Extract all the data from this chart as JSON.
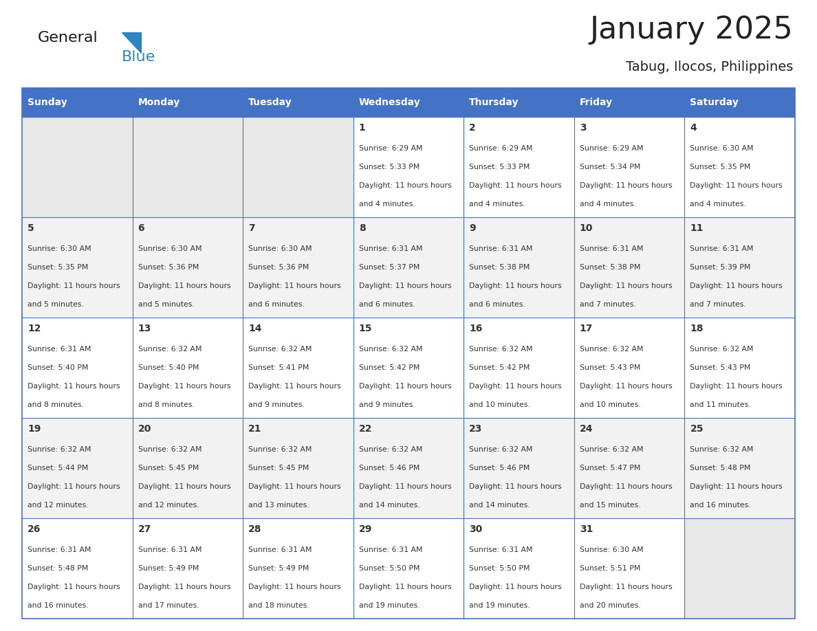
{
  "title": "January 2025",
  "subtitle": "Tabug, Ilocos, Philippines",
  "days_of_week": [
    "Sunday",
    "Monday",
    "Tuesday",
    "Wednesday",
    "Thursday",
    "Friday",
    "Saturday"
  ],
  "header_bg": "#4472C4",
  "header_text": "#FFFFFF",
  "cell_bg_light": "#FFFFFF",
  "cell_bg_dark": "#F2F2F2",
  "empty_cell_bg": "#E8E8E8",
  "border_color": "#4472C4",
  "text_color": "#333333",
  "title_color": "#222222",
  "calendar_data": [
    [
      {
        "day": "",
        "sunrise": "",
        "sunset": "",
        "daylight": ""
      },
      {
        "day": "",
        "sunrise": "",
        "sunset": "",
        "daylight": ""
      },
      {
        "day": "",
        "sunrise": "",
        "sunset": "",
        "daylight": ""
      },
      {
        "day": "1",
        "sunrise": "6:29 AM",
        "sunset": "5:33 PM",
        "daylight": "11 hours and 4 minutes."
      },
      {
        "day": "2",
        "sunrise": "6:29 AM",
        "sunset": "5:33 PM",
        "daylight": "11 hours and 4 minutes."
      },
      {
        "day": "3",
        "sunrise": "6:29 AM",
        "sunset": "5:34 PM",
        "daylight": "11 hours and 4 minutes."
      },
      {
        "day": "4",
        "sunrise": "6:30 AM",
        "sunset": "5:35 PM",
        "daylight": "11 hours and 4 minutes."
      }
    ],
    [
      {
        "day": "5",
        "sunrise": "6:30 AM",
        "sunset": "5:35 PM",
        "daylight": "11 hours and 5 minutes."
      },
      {
        "day": "6",
        "sunrise": "6:30 AM",
        "sunset": "5:36 PM",
        "daylight": "11 hours and 5 minutes."
      },
      {
        "day": "7",
        "sunrise": "6:30 AM",
        "sunset": "5:36 PM",
        "daylight": "11 hours and 6 minutes."
      },
      {
        "day": "8",
        "sunrise": "6:31 AM",
        "sunset": "5:37 PM",
        "daylight": "11 hours and 6 minutes."
      },
      {
        "day": "9",
        "sunrise": "6:31 AM",
        "sunset": "5:38 PM",
        "daylight": "11 hours and 6 minutes."
      },
      {
        "day": "10",
        "sunrise": "6:31 AM",
        "sunset": "5:38 PM",
        "daylight": "11 hours and 7 minutes."
      },
      {
        "day": "11",
        "sunrise": "6:31 AM",
        "sunset": "5:39 PM",
        "daylight": "11 hours and 7 minutes."
      }
    ],
    [
      {
        "day": "12",
        "sunrise": "6:31 AM",
        "sunset": "5:40 PM",
        "daylight": "11 hours and 8 minutes."
      },
      {
        "day": "13",
        "sunrise": "6:32 AM",
        "sunset": "5:40 PM",
        "daylight": "11 hours and 8 minutes."
      },
      {
        "day": "14",
        "sunrise": "6:32 AM",
        "sunset": "5:41 PM",
        "daylight": "11 hours and 9 minutes."
      },
      {
        "day": "15",
        "sunrise": "6:32 AM",
        "sunset": "5:42 PM",
        "daylight": "11 hours and 9 minutes."
      },
      {
        "day": "16",
        "sunrise": "6:32 AM",
        "sunset": "5:42 PM",
        "daylight": "11 hours and 10 minutes."
      },
      {
        "day": "17",
        "sunrise": "6:32 AM",
        "sunset": "5:43 PM",
        "daylight": "11 hours and 10 minutes."
      },
      {
        "day": "18",
        "sunrise": "6:32 AM",
        "sunset": "5:43 PM",
        "daylight": "11 hours and 11 minutes."
      }
    ],
    [
      {
        "day": "19",
        "sunrise": "6:32 AM",
        "sunset": "5:44 PM",
        "daylight": "11 hours and 12 minutes."
      },
      {
        "day": "20",
        "sunrise": "6:32 AM",
        "sunset": "5:45 PM",
        "daylight": "11 hours and 12 minutes."
      },
      {
        "day": "21",
        "sunrise": "6:32 AM",
        "sunset": "5:45 PM",
        "daylight": "11 hours and 13 minutes."
      },
      {
        "day": "22",
        "sunrise": "6:32 AM",
        "sunset": "5:46 PM",
        "daylight": "11 hours and 14 minutes."
      },
      {
        "day": "23",
        "sunrise": "6:32 AM",
        "sunset": "5:46 PM",
        "daylight": "11 hours and 14 minutes."
      },
      {
        "day": "24",
        "sunrise": "6:32 AM",
        "sunset": "5:47 PM",
        "daylight": "11 hours and 15 minutes."
      },
      {
        "day": "25",
        "sunrise": "6:32 AM",
        "sunset": "5:48 PM",
        "daylight": "11 hours and 16 minutes."
      }
    ],
    [
      {
        "day": "26",
        "sunrise": "6:31 AM",
        "sunset": "5:48 PM",
        "daylight": "11 hours and 16 minutes."
      },
      {
        "day": "27",
        "sunrise": "6:31 AM",
        "sunset": "5:49 PM",
        "daylight": "11 hours and 17 minutes."
      },
      {
        "day": "28",
        "sunrise": "6:31 AM",
        "sunset": "5:49 PM",
        "daylight": "11 hours and 18 minutes."
      },
      {
        "day": "29",
        "sunrise": "6:31 AM",
        "sunset": "5:50 PM",
        "daylight": "11 hours and 19 minutes."
      },
      {
        "day": "30",
        "sunrise": "6:31 AM",
        "sunset": "5:50 PM",
        "daylight": "11 hours and 19 minutes."
      },
      {
        "day": "31",
        "sunrise": "6:30 AM",
        "sunset": "5:51 PM",
        "daylight": "11 hours and 20 minutes."
      },
      {
        "day": "",
        "sunrise": "",
        "sunset": "",
        "daylight": ""
      }
    ]
  ],
  "logo_general_color": "#1a1a1a",
  "logo_blue_color": "#2E86C1",
  "logo_triangle_color": "#2E86C1"
}
